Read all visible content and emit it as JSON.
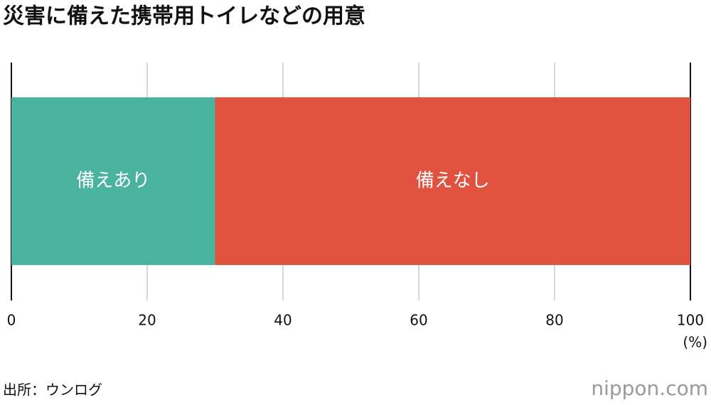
{
  "chart_data": {
    "type": "bar",
    "orientation": "horizontal",
    "stacked": true,
    "title": "災害に備えた携帯用トイレなどの用意",
    "categories": [
      null
    ],
    "series": [
      {
        "name": "備えあり",
        "color": "#4ab39e",
        "values": [
          30
        ]
      },
      {
        "name": "備えなし",
        "color": "#e0523e",
        "values": [
          70
        ]
      }
    ],
    "xlim": [
      0,
      100
    ],
    "xticks": [
      0,
      20,
      40,
      60,
      80,
      100
    ],
    "x_axis_label": "(%)",
    "grid": true,
    "source": "出所：ウンログ",
    "brand": "nippon.com"
  }
}
